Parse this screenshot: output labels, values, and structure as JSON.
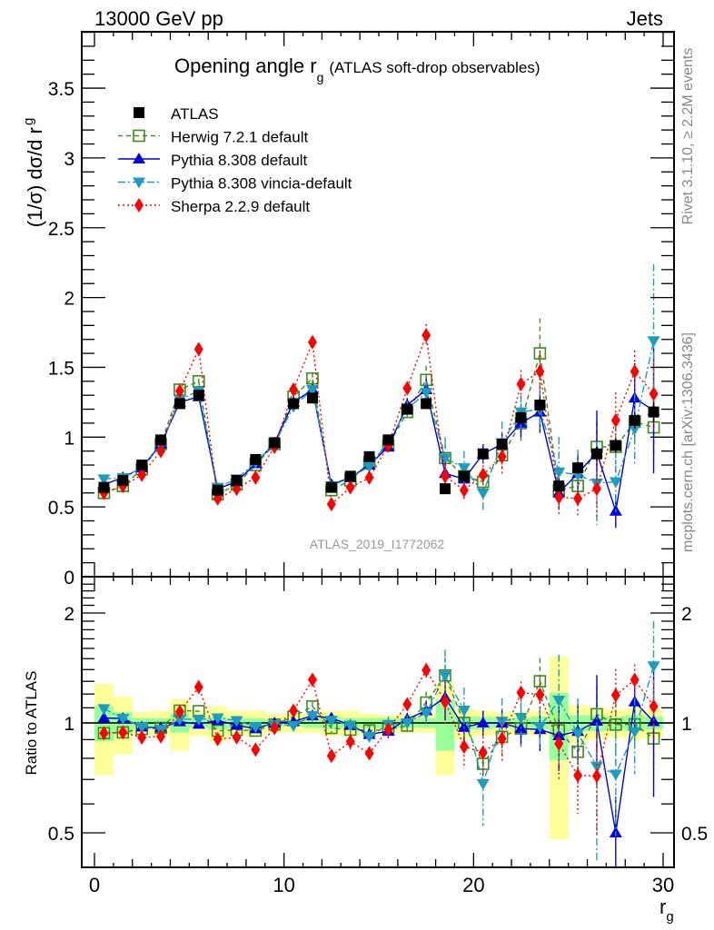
{
  "header": {
    "left": "13000 GeV pp",
    "right": "Jets"
  },
  "side_labels": {
    "rivet": "Rivet 3.1.10, ≥ 2.2M events",
    "mcplots": "mcplots.cern.ch [arXiv:1306.3436]"
  },
  "chart_data": {
    "type": "line",
    "title": "Opening angle r",
    "title_sub": "g",
    "title_suffix": "(ATLAS soft-drop observables)",
    "watermark": "ATLAS_2019_I1772062",
    "ylabel": "(1/σ) dσ/d r",
    "ylabel_sub": "g",
    "xlabel": "r",
    "xlabel_sub": "g",
    "ratio_ylabel": "Ratio to ATLAS",
    "xlim": [
      -0.5,
      30.5
    ],
    "ylim": [
      0,
      3.9
    ],
    "ratio_ylim": [
      0.4,
      2.5
    ],
    "ratio_scale": "log",
    "x_ticks": [
      0,
      10,
      20,
      30
    ],
    "x_tick_labels": [
      "0",
      "10",
      "20",
      "30"
    ],
    "y_ticks": [
      0,
      0.5,
      1,
      1.5,
      2,
      2.5,
      3,
      3.5
    ],
    "y_tick_labels": [
      "0",
      "0.5",
      "1",
      "1.5",
      "2",
      "2.5",
      "3",
      "3.5"
    ],
    "ratio_ticks": [
      0.5,
      1,
      2
    ],
    "ratio_tick_labels": [
      "0.5",
      "1",
      "2"
    ],
    "legend_position": "top-left",
    "x": [
      0.5,
      1.5,
      2.5,
      3.5,
      4.5,
      5.5,
      6.5,
      7.5,
      8.5,
      9.5,
      10.5,
      11.5,
      12.5,
      13.5,
      14.5,
      15.5,
      16.5,
      17.5,
      18.5,
      19.5,
      20.5,
      21.5,
      22.5,
      23.5,
      24.5,
      25.5,
      26.5,
      27.5,
      28.5,
      29.5
    ],
    "band_total": [
      0.28,
      0.18,
      0.07,
      0.08,
      0.16,
      0.08,
      0.11,
      0.08,
      0.08,
      0.06,
      0.06,
      0.06,
      0.08,
      0.08,
      0.06,
      0.05,
      0.06,
      0.06,
      0.28,
      0.1,
      0.08,
      0.07,
      0.07,
      0.08,
      0.52,
      0.12,
      0.1,
      0.09,
      0.1,
      0.09
    ],
    "band_stat": [
      0.11,
      0.07,
      0.03,
      0.03,
      0.06,
      0.03,
      0.04,
      0.03,
      0.03,
      0.02,
      0.02,
      0.03,
      0.04,
      0.03,
      0.03,
      0.03,
      0.03,
      0.03,
      0.16,
      0.04,
      0.04,
      0.03,
      0.03,
      0.04,
      0.21,
      0.05,
      0.05,
      0.04,
      0.05,
      0.04
    ],
    "series": [
      {
        "name": "ATLAS",
        "color": "#000000",
        "marker": "square-filled",
        "line": "none",
        "values": [
          0.64,
          0.69,
          0.8,
          0.98,
          1.24,
          1.3,
          0.62,
          0.69,
          0.84,
          0.96,
          1.24,
          1.28,
          0.64,
          0.72,
          0.86,
          0.98,
          1.2,
          1.24,
          0.63,
          0.72,
          0.88,
          0.95,
          1.14,
          1.23,
          0.65,
          0.78,
          0.88,
          0.94,
          1.12,
          1.18
        ],
        "errors": [
          0.01,
          0.01,
          0.01,
          0.01,
          0.02,
          0.02,
          0.01,
          0.01,
          0.01,
          0.01,
          0.02,
          0.02,
          0.01,
          0.01,
          0.02,
          0.02,
          0.02,
          0.02,
          0.02,
          0.02,
          0.03,
          0.03,
          0.04,
          0.05,
          0.04,
          0.04,
          0.05,
          0.05,
          0.06,
          0.07
        ]
      },
      {
        "name": "Herwig 7.2.1 default",
        "color": "#3b8c19",
        "marker": "square-open",
        "line": "dashed",
        "values": [
          0.6,
          0.65,
          0.77,
          0.95,
          1.34,
          1.4,
          0.59,
          0.66,
          0.8,
          0.95,
          1.29,
          1.42,
          0.62,
          0.69,
          0.82,
          0.94,
          1.18,
          1.41,
          0.85,
          0.72,
          0.68,
          0.87,
          1.1,
          1.6,
          0.62,
          0.65,
          0.93,
          0.93,
          1.11,
          1.07
        ],
        "errors": [
          0.01,
          0.01,
          0.01,
          0.01,
          0.02,
          0.02,
          0.01,
          0.01,
          0.02,
          0.02,
          0.03,
          0.04,
          0.02,
          0.03,
          0.03,
          0.04,
          0.05,
          0.1,
          0.1,
          0.08,
          0.08,
          0.1,
          0.14,
          0.25,
          0.14,
          0.12,
          0.18,
          0.2,
          0.15,
          0.2
        ]
      },
      {
        "name": "Pythia 8.308 default",
        "color": "#0000dd",
        "marker": "triangle-up",
        "line": "solid",
        "values": [
          0.66,
          0.71,
          0.78,
          0.95,
          1.25,
          1.29,
          0.63,
          0.68,
          0.81,
          0.96,
          1.25,
          1.34,
          0.66,
          0.71,
          0.8,
          0.93,
          1.23,
          1.34,
          0.74,
          0.7,
          0.88,
          0.95,
          1.1,
          1.18,
          0.6,
          0.74,
          0.89,
          0.47,
          1.28,
          1.19
        ],
        "errors": [
          0.01,
          0.01,
          0.01,
          0.01,
          0.02,
          0.02,
          0.01,
          0.01,
          0.02,
          0.02,
          0.02,
          0.03,
          0.02,
          0.02,
          0.03,
          0.04,
          0.05,
          0.08,
          0.1,
          0.06,
          0.07,
          0.08,
          0.1,
          0.15,
          0.12,
          0.14,
          0.3,
          0.12,
          0.25,
          0.45
        ]
      },
      {
        "name": "Pythia 8.308 vincia-default",
        "color": "#1e9cbf",
        "marker": "triangle-down",
        "line": "dash-dot",
        "values": [
          0.7,
          0.71,
          0.78,
          0.94,
          1.27,
          1.33,
          0.64,
          0.7,
          0.82,
          0.95,
          1.22,
          1.34,
          0.65,
          0.71,
          0.79,
          0.97,
          1.2,
          1.32,
          0.85,
          0.78,
          0.6,
          0.96,
          1.18,
          1.2,
          0.75,
          0.73,
          0.67,
          0.68,
          1.06,
          1.69
        ],
        "errors": [
          0.01,
          0.01,
          0.01,
          0.01,
          0.02,
          0.02,
          0.01,
          0.01,
          0.02,
          0.02,
          0.03,
          0.03,
          0.02,
          0.03,
          0.03,
          0.05,
          0.06,
          0.08,
          0.15,
          0.12,
          0.14,
          0.15,
          0.12,
          0.15,
          0.25,
          0.18,
          0.3,
          0.22,
          0.25,
          0.55
        ]
      },
      {
        "name": "Sherpa 2.2.9 default",
        "color": "#ff0000",
        "marker": "diamond",
        "line": "dotted",
        "values": [
          0.6,
          0.65,
          0.73,
          0.9,
          1.33,
          1.63,
          0.56,
          0.63,
          0.71,
          0.93,
          1.34,
          1.68,
          0.52,
          0.64,
          0.71,
          0.94,
          1.35,
          1.73,
          0.72,
          0.62,
          0.73,
          0.86,
          1.38,
          1.47,
          0.57,
          0.56,
          0.63,
          1.12,
          1.47,
          1.31
        ],
        "errors": [
          0.01,
          0.01,
          0.01,
          0.01,
          0.02,
          0.03,
          0.01,
          0.01,
          0.02,
          0.02,
          0.03,
          0.03,
          0.02,
          0.03,
          0.03,
          0.04,
          0.05,
          0.08,
          0.1,
          0.08,
          0.1,
          0.12,
          0.1,
          0.15,
          0.12,
          0.12,
          0.2,
          0.2,
          0.15,
          0.25
        ]
      }
    ]
  }
}
